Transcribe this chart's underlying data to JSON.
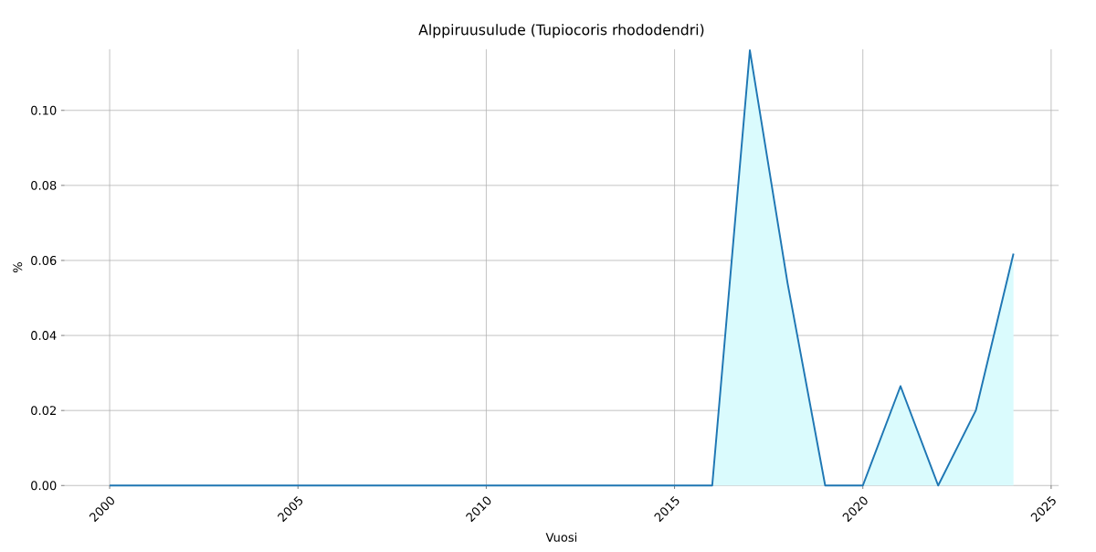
{
  "chart_data": {
    "type": "area",
    "title": "Alppiruusulude (Tupiocoris rhododendri)",
    "xlabel": "Vuosi",
    "ylabel": "%",
    "x": [
      2000,
      2001,
      2002,
      2003,
      2004,
      2005,
      2006,
      2007,
      2008,
      2009,
      2010,
      2011,
      2012,
      2013,
      2014,
      2015,
      2016,
      2017,
      2018,
      2019,
      2020,
      2021,
      2022,
      2023,
      2024
    ],
    "series": [
      {
        "color": "#1f77b4",
        "values": [
          0,
          0,
          0,
          0,
          0,
          0,
          0,
          0,
          0,
          0,
          0,
          0,
          0,
          0,
          0,
          0,
          0,
          0.116,
          0.054,
          0,
          0,
          0.0265,
          0,
          0.02,
          0.0618
        ]
      }
    ],
    "xlim": [
      1998.8,
      2025.2
    ],
    "ylim": [
      0,
      0.1163
    ],
    "xticks": [
      2000,
      2005,
      2010,
      2015,
      2020,
      2025
    ],
    "yticks": [
      {
        "value": 0,
        "label": "0.00"
      },
      {
        "value": 0.02,
        "label": "0.02"
      },
      {
        "value": 0.04,
        "label": "0.04"
      },
      {
        "value": 0.06,
        "label": "0.06"
      },
      {
        "value": 0.08,
        "label": "0.08"
      },
      {
        "value": 0.1,
        "label": "0.10"
      }
    ],
    "grid": true
  }
}
